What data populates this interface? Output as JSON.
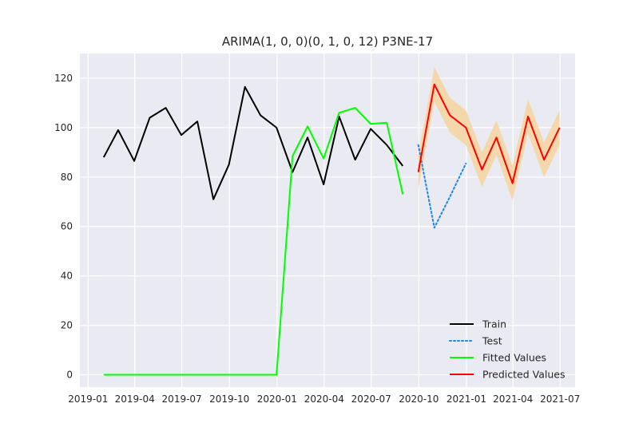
{
  "chart_data": {
    "type": "line",
    "title": "ARIMA(1, 0, 0)(0, 1, 0, 12) P3NE-17",
    "xlabel": "",
    "ylabel": "",
    "xlim": [
      "2018-12-16",
      "2021-07-30"
    ],
    "ylim": [
      -5,
      130
    ],
    "yticks": [
      0,
      20,
      40,
      60,
      80,
      100,
      120
    ],
    "xticks": [
      "2019-01",
      "2019-04",
      "2019-07",
      "2019-10",
      "2020-01",
      "2020-04",
      "2020-07",
      "2020-10",
      "2021-01",
      "2021-04",
      "2021-07"
    ],
    "grid": true,
    "legend": "lower right",
    "series": [
      {
        "name": "Train",
        "color": "#000000",
        "style": "solid",
        "x": [
          "2019-01-31",
          "2019-02-28",
          "2019-03-31",
          "2019-04-30",
          "2019-05-31",
          "2019-06-30",
          "2019-07-31",
          "2019-08-31",
          "2019-09-30",
          "2019-10-31",
          "2019-11-30",
          "2019-12-31",
          "2020-01-31",
          "2020-02-29",
          "2020-03-31",
          "2020-04-30",
          "2020-05-31",
          "2020-06-30",
          "2020-07-31",
          "2020-08-31"
        ],
        "y": [
          88,
          99,
          86.5,
          104,
          108,
          97,
          102.5,
          71,
          85,
          116.5,
          105,
          100,
          82,
          96,
          77,
          104.5,
          87,
          99.5,
          93,
          84.5
        ]
      },
      {
        "name": "Test",
        "color": "#1e88e5",
        "style": "dotted",
        "x": [
          "2020-09-30",
          "2020-10-31",
          "2020-11-30",
          "2020-12-31"
        ],
        "y": [
          93,
          59.5,
          72,
          85.5
        ]
      },
      {
        "name": "Fitted Values",
        "color": "#00ff00",
        "style": "solid",
        "x": [
          "2019-01-31",
          "2019-02-28",
          "2019-03-31",
          "2019-04-30",
          "2019-05-31",
          "2019-06-30",
          "2019-07-31",
          "2019-08-31",
          "2019-09-30",
          "2019-10-31",
          "2019-11-30",
          "2019-12-31",
          "2020-01-31",
          "2020-02-29",
          "2020-03-31",
          "2020-04-30",
          "2020-05-31",
          "2020-06-30",
          "2020-07-31",
          "2020-08-31"
        ],
        "y": [
          0,
          0,
          0,
          0,
          0,
          0,
          0,
          0,
          0,
          0,
          0,
          0,
          88.5,
          100.5,
          87.5,
          106,
          108,
          101.5,
          102,
          73
        ]
      },
      {
        "name": "Predicted Values",
        "color": "#ff0000",
        "style": "solid",
        "x": [
          "2020-09-30",
          "2020-10-31",
          "2020-11-30",
          "2020-12-31",
          "2021-01-31",
          "2021-02-28",
          "2021-03-31",
          "2021-04-30",
          "2021-05-31",
          "2021-06-30"
        ],
        "y": [
          82,
          117.5,
          105,
          100,
          83,
          96,
          77.5,
          104.5,
          87,
          100
        ],
        "ci_lower": [
          75,
          110.5,
          98,
          93,
          76,
          89,
          70.5,
          97.5,
          80,
          93
        ],
        "ci_upper": [
          89,
          124.5,
          112,
          107,
          90,
          103,
          84.5,
          111.5,
          94,
          107
        ],
        "band_color": "#f5d5a3"
      }
    ]
  }
}
